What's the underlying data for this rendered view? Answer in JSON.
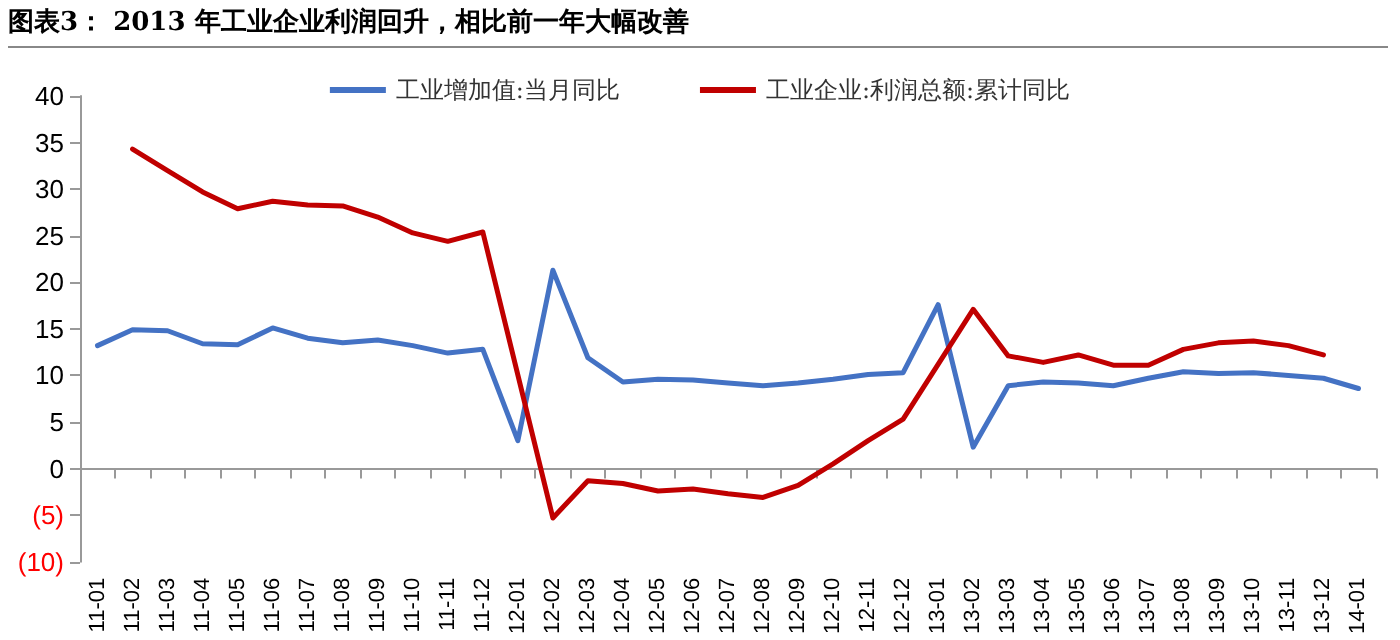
{
  "chart_data": {
    "type": "line",
    "title": "图表3： 2013 年工业企业利润回升，相比前一年大幅改善",
    "categories": [
      "11-01",
      "11-02",
      "11-03",
      "11-04",
      "11-05",
      "11-06",
      "11-07",
      "11-08",
      "11-09",
      "11-10",
      "11-11",
      "11-12",
      "12-01",
      "12-02",
      "12-03",
      "12-04",
      "12-05",
      "12-06",
      "12-07",
      "12-08",
      "12-09",
      "12-10",
      "12-11",
      "12-12",
      "13-01",
      "13-02",
      "13-03",
      "13-04",
      "13-05",
      "13-06",
      "13-07",
      "13-08",
      "13-09",
      "13-10",
      "13-11",
      "13-12",
      "14-01"
    ],
    "series": [
      {
        "name": "工业增加值:当月同比",
        "color": "#4472c4",
        "values": [
          13.2,
          14.9,
          14.8,
          13.4,
          13.3,
          15.1,
          14.0,
          13.5,
          13.8,
          13.2,
          12.4,
          12.8,
          3.0,
          21.3,
          11.9,
          9.3,
          9.6,
          9.5,
          9.2,
          8.9,
          9.2,
          9.6,
          10.1,
          10.3,
          17.6,
          2.3,
          8.9,
          9.3,
          9.2,
          8.9,
          9.7,
          10.4,
          10.2,
          10.3,
          10.0,
          9.7,
          8.6
        ]
      },
      {
        "name": "工业企业:利润总额:累计同比",
        "color": "#c00000",
        "values": [
          null,
          34.3,
          32.0,
          29.7,
          27.9,
          28.7,
          28.3,
          28.2,
          27.0,
          25.3,
          24.4,
          25.4,
          null,
          -5.3,
          -1.3,
          -1.6,
          -2.4,
          -2.2,
          -2.7,
          -3.1,
          -1.8,
          0.5,
          3.0,
          5.3,
          null,
          17.1,
          12.1,
          11.4,
          12.2,
          11.1,
          11.1,
          12.8,
          13.5,
          13.7,
          13.2,
          12.2,
          null
        ]
      }
    ],
    "ylim": [
      -10,
      40
    ],
    "yticks": [
      {
        "value": -10,
        "label": "(10)"
      },
      {
        "value": -5,
        "label": "(5)"
      },
      0,
      5,
      10,
      15,
      20,
      25,
      30,
      35,
      40
    ],
    "legend": "top",
    "marker": "none",
    "line_style": "solid"
  }
}
